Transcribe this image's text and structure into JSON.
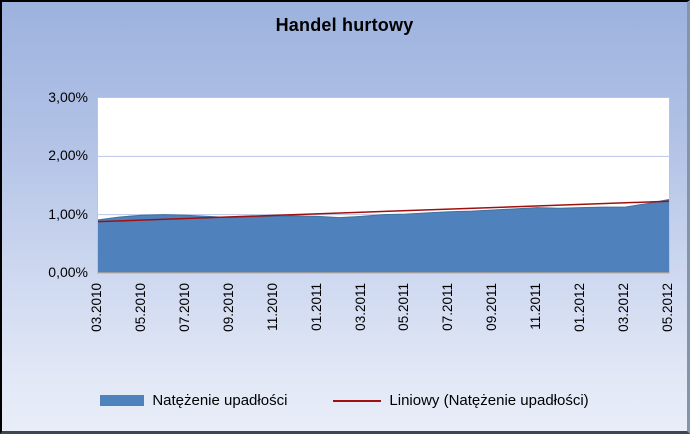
{
  "chart_data": {
    "type": "area",
    "title": "Handel hurtowy",
    "x": [
      "03.2010",
      "04.2010",
      "05.2010",
      "06.2010",
      "07.2010",
      "08.2010",
      "09.2010",
      "10.2010",
      "11.2010",
      "12.2010",
      "01.2011",
      "02.2011",
      "03.2011",
      "04.2011",
      "05.2011",
      "06.2011",
      "07.2011",
      "08.2011",
      "09.2011",
      "10.2011",
      "11.2011",
      "12.2011",
      "01.2012",
      "02.2012",
      "03.2012",
      "04.2012",
      "05.2012"
    ],
    "x_tick_labels": [
      "03.2010",
      "05.2010",
      "07.2010",
      "09.2010",
      "11.2010",
      "01.2011",
      "03.2011",
      "05.2011",
      "07.2011",
      "09.2011",
      "11.2011",
      "01.2012",
      "03.2012",
      "05.2012"
    ],
    "x_tick_step": 2,
    "series": [
      {
        "name": "Natężenie upadłości",
        "kind": "area",
        "values": [
          0.91,
          0.96,
          0.99,
          1.0,
          0.99,
          0.97,
          0.95,
          0.96,
          0.97,
          0.98,
          0.97,
          0.95,
          0.97,
          1.0,
          1.01,
          1.03,
          1.05,
          1.06,
          1.08,
          1.1,
          1.12,
          1.11,
          1.12,
          1.13,
          1.13,
          1.19,
          1.26
        ]
      },
      {
        "name": "Liniowy (Natężenie upadłości)",
        "kind": "linear-trendline",
        "endpoints": [
          0.88,
          1.23
        ]
      }
    ],
    "ylabel": "",
    "xlabel": "",
    "ylim": [
      0,
      3
    ],
    "y_ticks": [
      {
        "value": 0,
        "label": "0,00%"
      },
      {
        "value": 1,
        "label": "1,00%"
      },
      {
        "value": 2,
        "label": "2,00%"
      },
      {
        "value": 3,
        "label": "3,00%"
      }
    ],
    "grid": true,
    "legend_position": "bottom",
    "colors": {
      "area_fill": "#4f81bd",
      "area_edge": "#41719c",
      "trendline": "#a01010",
      "gridline": "#b9c7e6",
      "axis_line": "#9a9a9a",
      "plot_bg": "#ffffff",
      "frame_bg_top": "#9cb2de",
      "frame_bg_bottom": "#e8edf8",
      "text": "#000000"
    }
  }
}
